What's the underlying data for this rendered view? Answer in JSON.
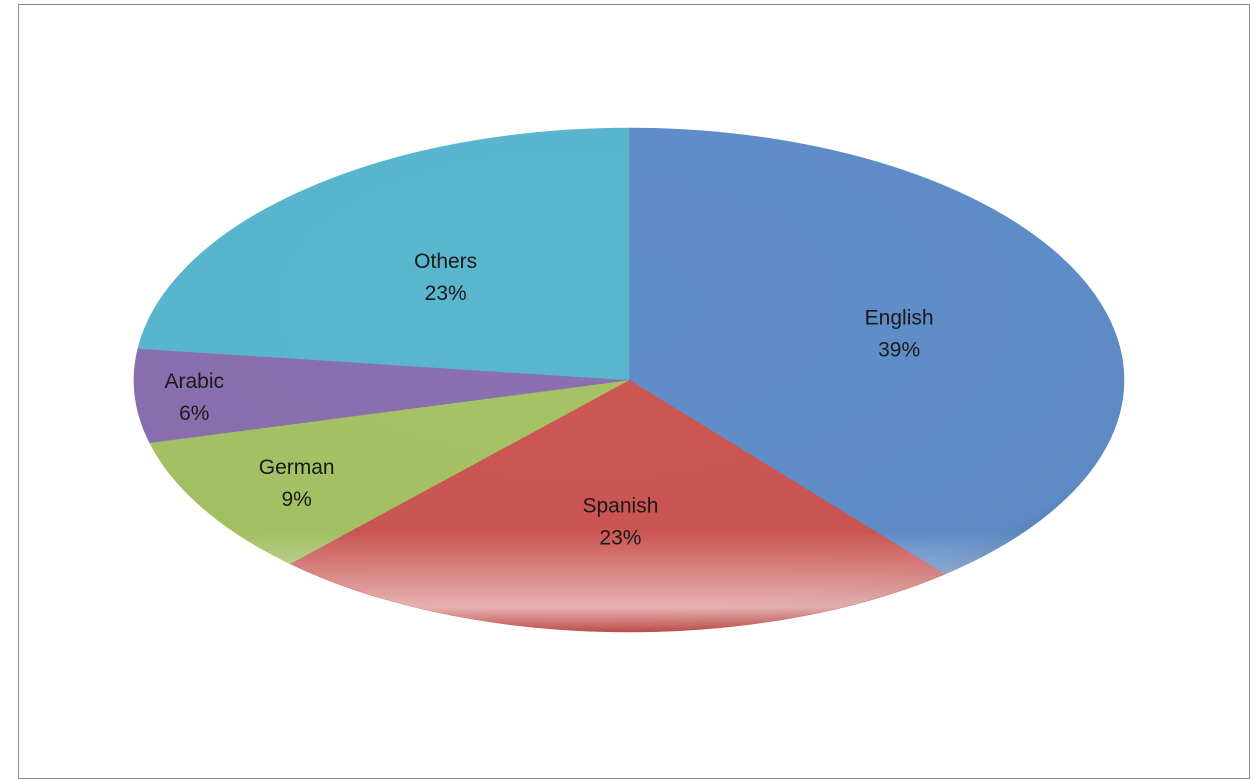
{
  "chart_data": {
    "type": "pie",
    "title": "",
    "slices": [
      {
        "label": "English",
        "value": 39,
        "percent_label": "39%",
        "color": "#5f8dc8"
      },
      {
        "label": "Spanish",
        "value": 23,
        "percent_label": "23%",
        "color": "#cc5552"
      },
      {
        "label": "German",
        "value": 9,
        "percent_label": "9%",
        "color": "#a5c264"
      },
      {
        "label": "Arabic",
        "value": 6,
        "percent_label": "6%",
        "color": "#8a6fb0"
      },
      {
        "label": "Others",
        "value": 23,
        "percent_label": "23%",
        "color": "#59b6cf"
      }
    ],
    "legend": "none",
    "data_labels": "inside, category and percent"
  }
}
